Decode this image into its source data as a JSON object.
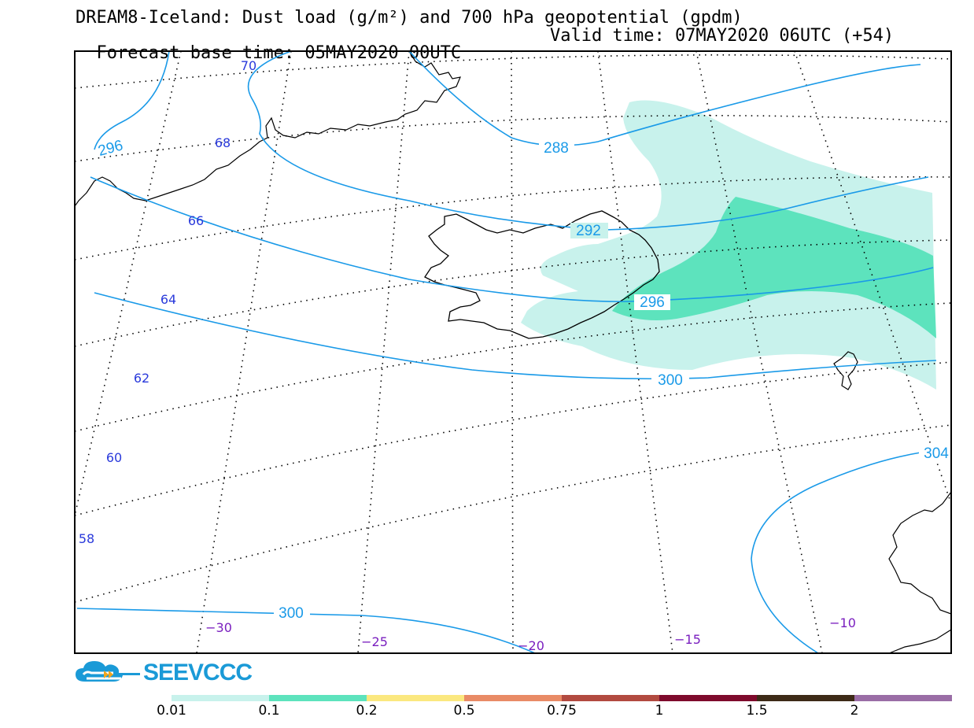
{
  "title": {
    "line1": "DREAM8-Iceland: Dust load (g/m²) and 700 hPa geopotential (gpdm)",
    "base_time": "Forecast base time: 05MAY2020 00UTC",
    "valid_time": "Valid time: 07MAY2020 06UTC (+54)"
  },
  "map": {
    "latitude_labels": [
      "70",
      "68",
      "66",
      "64",
      "62",
      "60",
      "58"
    ],
    "longitude_labels": [
      "−30",
      "−25",
      "−20",
      "−15",
      "−10"
    ],
    "contour_labels": [
      "296",
      "288",
      "292",
      "296",
      "300",
      "304",
      "300"
    ],
    "dust_fill_colors": {
      "0.01": "#c8f2ec",
      "0.1": "#5de3bd"
    },
    "contour_color": "#1a9ae8"
  },
  "logo": {
    "text": "SEEVCCC"
  },
  "colorbar": {
    "colors": [
      "#c8f2ec",
      "#5de3bd",
      "#fbe87f",
      "#e98b66",
      "#b24a40",
      "#7e0a2c",
      "#3d2a17",
      "#9a6da6"
    ],
    "labels": [
      "0.01",
      "0.1",
      "0.2",
      "0.5",
      "0.75",
      "1",
      "1.5",
      "2"
    ]
  }
}
